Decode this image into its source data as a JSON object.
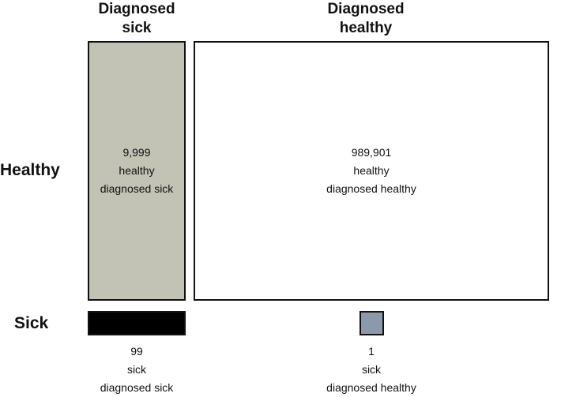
{
  "columns": {
    "diagnosed_sick": {
      "line1": "Diagnosed",
      "line2": "sick"
    },
    "diagnosed_healthy": {
      "line1": "Diagnosed",
      "line2": "healthy"
    }
  },
  "rows": {
    "healthy": "Healthy",
    "sick": "Sick"
  },
  "cells": {
    "healthy_diagnosed_sick": {
      "count": "9,999",
      "line2": "healthy",
      "line3": "diagnosed sick",
      "fill": "#c2c2b5",
      "value": 9999
    },
    "healthy_diagnosed_healthy": {
      "count": "989,901",
      "line2": "healthy",
      "line3": "diagnosed healthy",
      "fill": "#ffffff",
      "value": 989901
    },
    "sick_diagnosed_sick": {
      "count": "99",
      "line2": "sick",
      "line3": "diagnosed sick",
      "fill": "#000000",
      "value": 99
    },
    "sick_diagnosed_healthy": {
      "count": "1",
      "line2": "sick",
      "line3": "diagnosed healthy",
      "fill": "#8a9aaa",
      "value": 1
    }
  }
}
